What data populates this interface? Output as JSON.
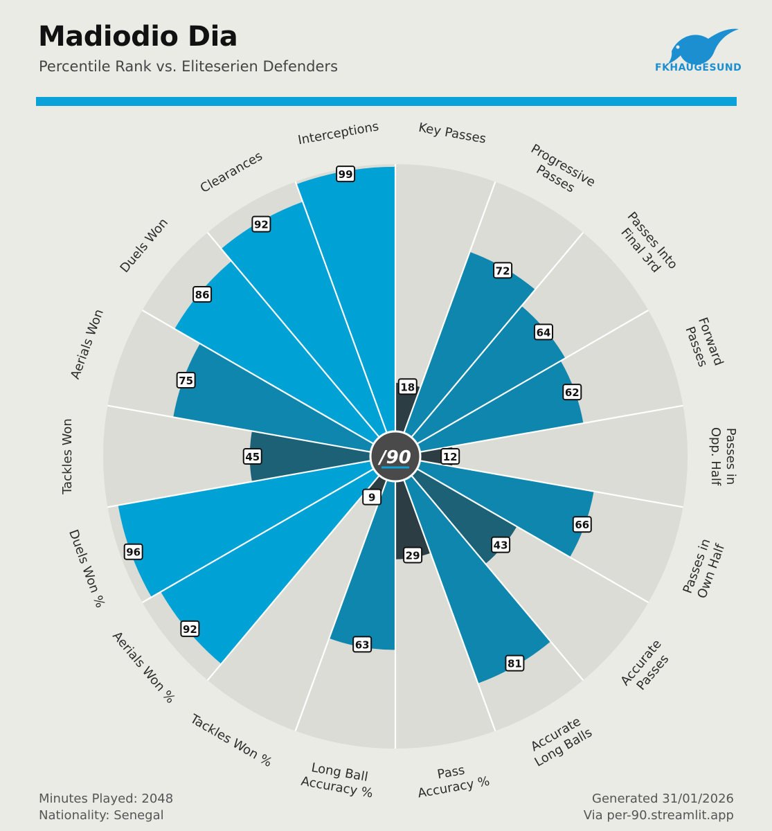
{
  "header": {
    "player_name": "Madiodio Dia",
    "subtitle": "Percentile Rank vs. Eliteserien Defenders"
  },
  "logo": {
    "text": "FKHAUGESUND",
    "icon": "seagull-icon",
    "color": "#1b8fd0"
  },
  "center_badge": {
    "label": "/90"
  },
  "footer": {
    "minutes_played": "Minutes Played: 2048",
    "nationality": "Nationality: Senegal",
    "generated": "Generated 31/01/2026",
    "source": "Via per-90.streamlit.app"
  },
  "colors": {
    "background": "#ebebe6",
    "slice_background": "#dcdcd6",
    "accent_bar": "#0aa2d8",
    "tier_top": "#00a2d6",
    "tier_high": "#0e86ad",
    "tier_mid": "#1c6176",
    "tier_low": "#2c3e44"
  },
  "chart_data": {
    "type": "polar-bar",
    "range": [
      0,
      100
    ],
    "categories": [
      "Key Passes",
      "Progressive Passes",
      "Passes Into Final 3rd",
      "Forward Passes",
      "Passes in Opp. Half",
      "Passes in Own Half",
      "Accurate Passes",
      "Accurate Long Balls",
      "Pass Accuracy %",
      "Long Ball Accuracy %",
      "Tackles Won %",
      "Aerials Won %",
      "Duels Won %",
      "Tackles Won",
      "Aerials Won",
      "Duels Won",
      "Clearances",
      "Interceptions"
    ],
    "values": [
      18,
      72,
      64,
      62,
      12,
      66,
      43,
      81,
      29,
      63,
      9,
      92,
      96,
      45,
      75,
      86,
      92,
      99
    ]
  }
}
